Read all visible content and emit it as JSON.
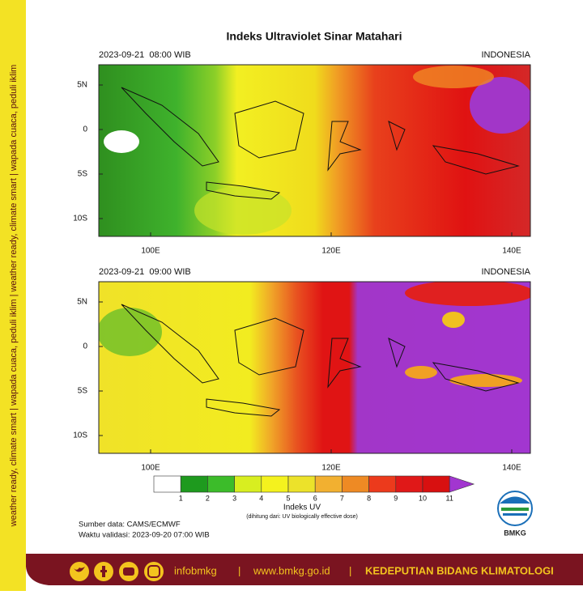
{
  "header": {
    "title": "Indeks Ultraviolet Sinar Matahari"
  },
  "panels": [
    {
      "datetime": "2023-09-21  08:00 WIB",
      "region": "INDONESIA",
      "lat_labels": [
        "5N",
        "0",
        "5S",
        "10S"
      ],
      "lon_labels": [
        "100E",
        "120E",
        "140E"
      ]
    },
    {
      "datetime": "2023-09-21  09:00 WIB",
      "region": "INDONESIA",
      "lat_labels": [
        "5N",
        "0",
        "5S",
        "10S"
      ],
      "lon_labels": [
        "100E",
        "120E",
        "140E"
      ]
    }
  ],
  "colorbar": {
    "ticks": [
      1,
      2,
      3,
      4,
      5,
      6,
      7,
      8,
      9,
      10,
      11
    ],
    "label": "Indeks UV",
    "note": "(dihitung dari: UV biologically effective dose)"
  },
  "source": "Sumber data: CAMS/ECMWF",
  "valid": "Waktu validasi: 2023-09-20 07:00 WIB",
  "logo": "BMKG",
  "sidebar": "weather ready, climate smart  |  wapada cuaca, peduli iklim  |  weather ready, climate smart  |  wapada cuaca, peduli iklim",
  "footer": {
    "handle": "infobmkg",
    "separator1": "|",
    "website": "www.bmkg.go.id",
    "separator2": "|",
    "org": "KEDEPUTIAN BIDANG KLIMATOLOGI"
  }
}
